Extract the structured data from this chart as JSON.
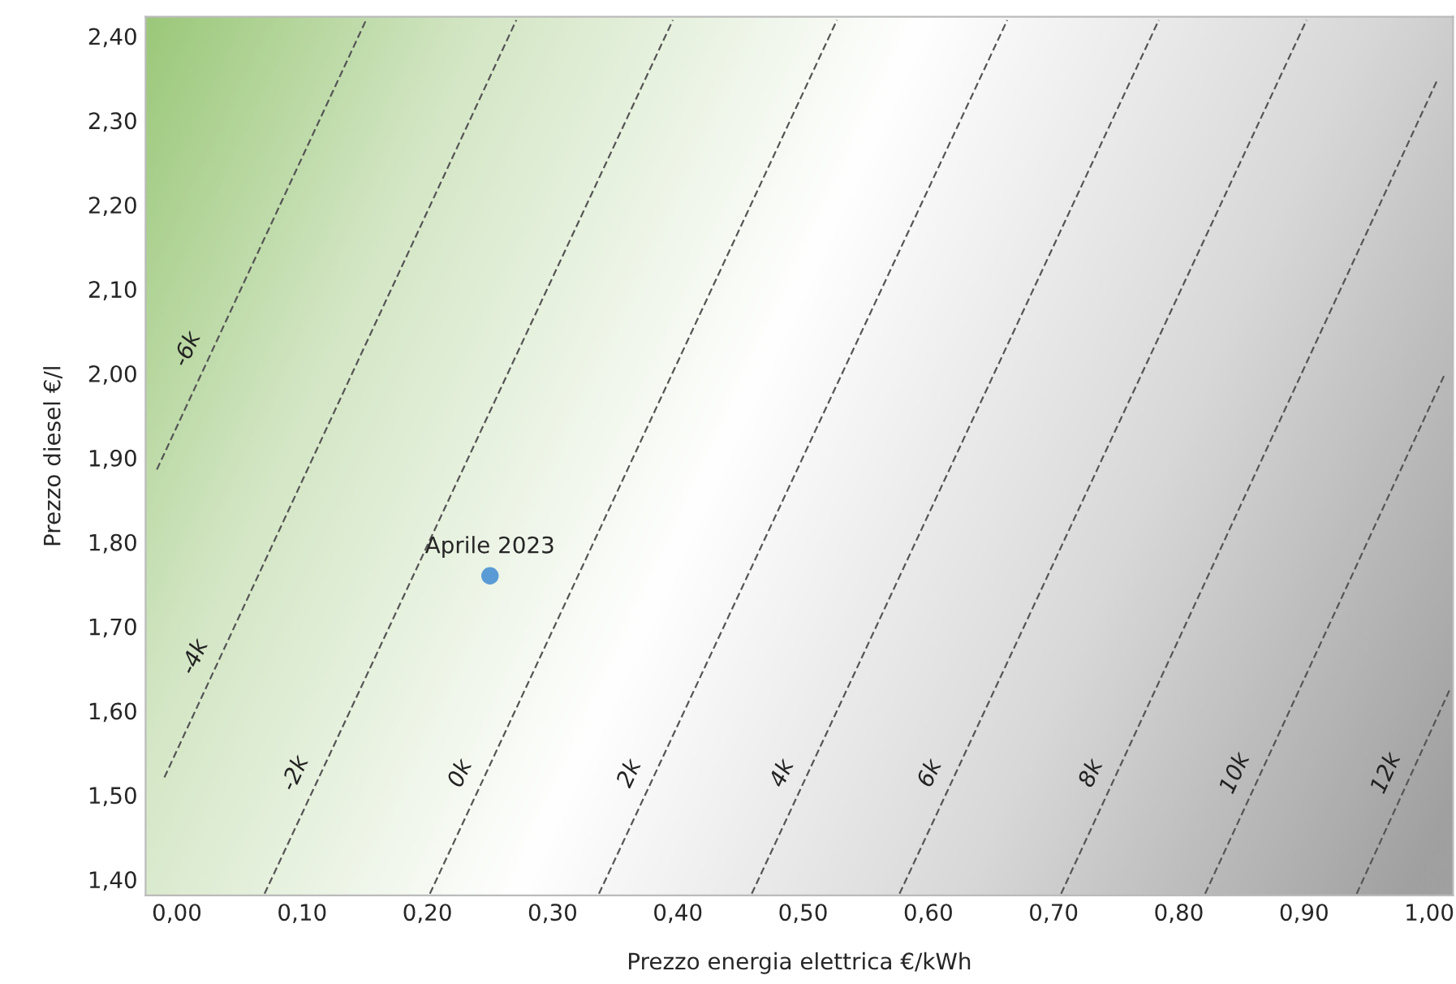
{
  "chart_data": {
    "type": "line",
    "xlabel": "Prezzo energia elettrica €/kWh",
    "ylabel": "Prezzo diesel €/l",
    "xlim": [
      -0.025,
      1.019
    ],
    "ylim": [
      1.381,
      2.423
    ],
    "xticks": [
      {
        "value": 0,
        "label": "0,00"
      },
      {
        "value": 0.1,
        "label": "0,10"
      },
      {
        "value": 0.2,
        "label": "0,20"
      },
      {
        "value": 0.3,
        "label": "0,30"
      },
      {
        "value": 0.4,
        "label": "0,40"
      },
      {
        "value": 0.5,
        "label": "0,50"
      },
      {
        "value": 0.6,
        "label": "0,60"
      },
      {
        "value": 0.7,
        "label": "0,70"
      },
      {
        "value": 0.8,
        "label": "0,80"
      },
      {
        "value": 0.9,
        "label": "0,90"
      },
      {
        "value": 1,
        "label": "1,00"
      }
    ],
    "yticks": [
      {
        "value": 1.4,
        "label": "1,40"
      },
      {
        "value": 1.5,
        "label": "1,50"
      },
      {
        "value": 1.6,
        "label": "1,60"
      },
      {
        "value": 1.7,
        "label": "1,70"
      },
      {
        "value": 1.8,
        "label": "1,80"
      },
      {
        "value": 1.9,
        "label": "1,90"
      },
      {
        "value": 2.0,
        "label": "2,00"
      },
      {
        "value": 2.1,
        "label": "2,10"
      },
      {
        "value": 2.2,
        "label": "2,20"
      },
      {
        "value": 2.3,
        "label": "2,30"
      },
      {
        "value": 2.4,
        "label": "2,40"
      }
    ],
    "line_style": "dashed",
    "grid": false,
    "legend": false,
    "series": [
      {
        "name": "-6k",
        "color": "#555555",
        "x": [
          -0.016,
          0.151
        ],
        "values": [
          1.886,
          2.419
        ]
      },
      {
        "name": "-4k",
        "color": "#555555",
        "x": [
          -0.01,
          0.271
        ],
        "values": [
          1.521,
          2.419
        ]
      },
      {
        "name": "-2k",
        "color": "#555555",
        "x": [
          0.07,
          0.396
        ],
        "values": [
          1.383,
          2.419
        ]
      },
      {
        "name": "0k",
        "color": "#555555",
        "x": [
          0.202,
          0.527
        ],
        "values": [
          1.383,
          2.419
        ]
      },
      {
        "name": "2k",
        "color": "#555555",
        "x": [
          0.337,
          0.663
        ],
        "values": [
          1.383,
          2.419
        ]
      },
      {
        "name": "4k",
        "color": "#555555",
        "x": [
          0.459,
          0.784
        ],
        "values": [
          1.383,
          2.419
        ]
      },
      {
        "name": "6k",
        "color": "#555555",
        "x": [
          0.577,
          0.902
        ],
        "values": [
          1.383,
          2.419
        ]
      },
      {
        "name": "8k",
        "color": "#555555",
        "x": [
          0.706,
          1.007
        ],
        "values": [
          1.383,
          2.35
        ]
      },
      {
        "name": "10k",
        "color": "#555555",
        "x": [
          0.821,
          1.012
        ],
        "values": [
          1.383,
          1.998
        ]
      },
      {
        "name": "12k",
        "color": "#555555",
        "x": [
          0.942,
          1.016
        ],
        "values": [
          1.383,
          1.624
        ]
      },
      {
        "type": "scatter",
        "marker": "circle",
        "color": "#5b9bd5",
        "x": [
          0.25
        ],
        "values": [
          1.76
        ]
      }
    ],
    "annotations": [
      {
        "text": "Aprile 2023",
        "x": 0.25,
        "y": 1.76
      }
    ]
  }
}
